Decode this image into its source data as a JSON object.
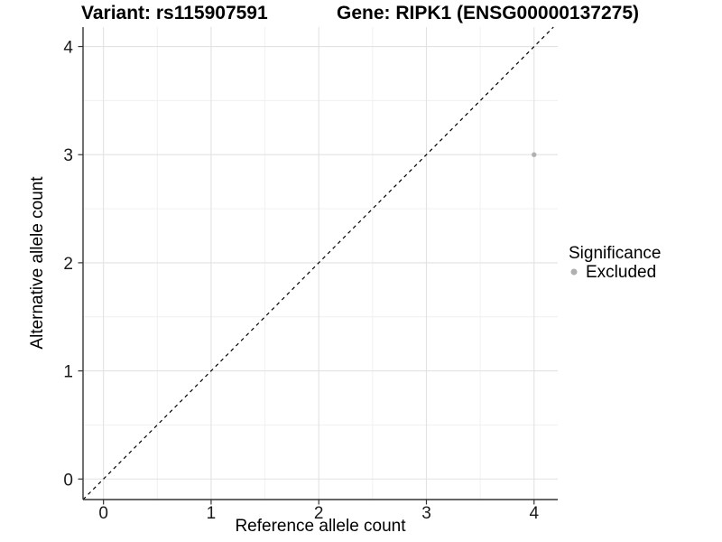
{
  "chart_data": {
    "type": "scatter",
    "titles": {
      "left": "Variant: rs115907591",
      "right": "Gene: RIPK1 (ENSG00000137275)"
    },
    "xlabel": "Reference allele count",
    "ylabel": "Alternative allele count",
    "x_ticks": [
      0,
      1,
      2,
      3,
      4
    ],
    "y_ticks": [
      0,
      1,
      2,
      3,
      4
    ],
    "x_minor_ticks": [
      0.5,
      1.5,
      2.5,
      3.5
    ],
    "y_minor_ticks": [
      0.5,
      1.5,
      2.5,
      3.5
    ],
    "xlim": [
      -0.19,
      4.22
    ],
    "ylim": [
      -0.19,
      4.18
    ],
    "grid": true,
    "points": [
      {
        "x": 4,
        "y": 3,
        "significance": "Excluded"
      }
    ],
    "identity_line": {
      "slope": 1,
      "intercept": 0,
      "style": "dashed",
      "color": "#000000"
    },
    "legend": {
      "position": "right",
      "title": "Significance",
      "items": [
        {
          "label": "Excluded",
          "color": "#b0b0b0"
        }
      ]
    }
  }
}
